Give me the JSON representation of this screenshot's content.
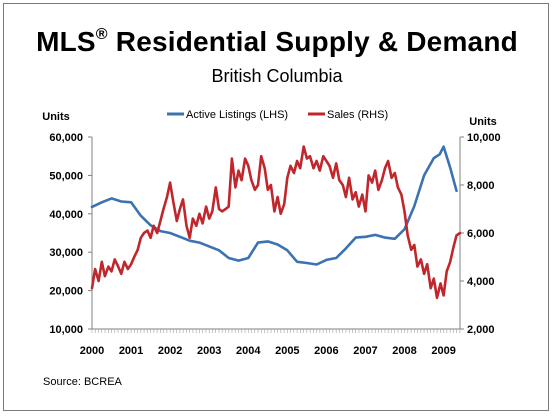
{
  "title": {
    "main": "MLS",
    "reg": "®",
    "rest": " Residential Supply & Demand"
  },
  "subtitle": "British Columbia",
  "source": "Source: BCREA",
  "chart_data": {
    "type": "line",
    "left_axis": {
      "label": "Units",
      "min": 10000,
      "max": 60000,
      "ticks": [
        10000,
        20000,
        30000,
        40000,
        50000,
        60000
      ],
      "tick_labels": [
        "10,000",
        "20,000",
        "30,000",
        "40,000",
        "50,000",
        "60,000"
      ]
    },
    "right_axis": {
      "label": "Units",
      "min": 2000,
      "max": 10000,
      "ticks": [
        2000,
        4000,
        6000,
        8000,
        10000
      ],
      "tick_labels": [
        "2,000",
        "4,000",
        "6,000",
        "8,000",
        "10,000"
      ]
    },
    "x_axis": {
      "min": 2000.0,
      "max": 2009.42,
      "tick_labels": [
        "2000",
        "2001",
        "2002",
        "2003",
        "2004",
        "2005",
        "2006",
        "2007",
        "2008",
        "2009"
      ],
      "tick_positions": [
        2000,
        2001,
        2002,
        2003,
        2004,
        2005,
        2006,
        2007,
        2008,
        2009
      ]
    },
    "legend": {
      "placement": "top-center"
    },
    "series": [
      {
        "name": "Active Listings (LHS)",
        "axis": "left",
        "color": "#3b73b2",
        "x": [
          2000.0,
          2000.25,
          2000.5,
          2000.75,
          2001.0,
          2001.25,
          2001.5,
          2001.75,
          2002.0,
          2002.25,
          2002.5,
          2002.75,
          2003.0,
          2003.25,
          2003.5,
          2003.75,
          2004.0,
          2004.25,
          2004.5,
          2004.75,
          2005.0,
          2005.25,
          2005.5,
          2005.75,
          2006.0,
          2006.25,
          2006.5,
          2006.75,
          2007.0,
          2007.25,
          2007.5,
          2007.75,
          2008.0,
          2008.25,
          2008.5,
          2008.75,
          2008.9,
          2009.0,
          2009.17,
          2009.33
        ],
        "y": [
          41800,
          43000,
          44000,
          43200,
          43000,
          39500,
          37000,
          35500,
          35000,
          34000,
          33000,
          32500,
          31500,
          30500,
          28500,
          27800,
          28500,
          32500,
          32800,
          32000,
          30500,
          27500,
          27200,
          26800,
          28000,
          28500,
          31000,
          33800,
          34000,
          34500,
          33800,
          33500,
          36000,
          42000,
          50000,
          54500,
          55500,
          57500,
          52000,
          46000
        ]
      },
      {
        "name": "Sales (RHS)",
        "axis": "right",
        "color": "#c0272d",
        "x": [
          2000.0,
          2000.08,
          2000.17,
          2000.25,
          2000.33,
          2000.42,
          2000.5,
          2000.58,
          2000.67,
          2000.75,
          2000.83,
          2000.92,
          2001.0,
          2001.08,
          2001.17,
          2001.25,
          2001.33,
          2001.42,
          2001.5,
          2001.58,
          2001.67,
          2001.75,
          2001.83,
          2001.92,
          2002.0,
          2002.08,
          2002.17,
          2002.25,
          2002.33,
          2002.42,
          2002.5,
          2002.58,
          2002.67,
          2002.75,
          2002.83,
          2002.92,
          2003.0,
          2003.08,
          2003.17,
          2003.25,
          2003.33,
          2003.42,
          2003.5,
          2003.58,
          2003.67,
          2003.75,
          2003.83,
          2003.92,
          2004.0,
          2004.08,
          2004.17,
          2004.25,
          2004.33,
          2004.42,
          2004.5,
          2004.58,
          2004.67,
          2004.75,
          2004.83,
          2004.92,
          2005.0,
          2005.08,
          2005.17,
          2005.25,
          2005.33,
          2005.42,
          2005.5,
          2005.58,
          2005.67,
          2005.75,
          2005.83,
          2005.92,
          2006.0,
          2006.08,
          2006.17,
          2006.25,
          2006.33,
          2006.42,
          2006.5,
          2006.58,
          2006.67,
          2006.75,
          2006.83,
          2006.92,
          2007.0,
          2007.08,
          2007.17,
          2007.25,
          2007.33,
          2007.42,
          2007.5,
          2007.58,
          2007.67,
          2007.75,
          2007.83,
          2007.92,
          2008.0,
          2008.08,
          2008.17,
          2008.25,
          2008.33,
          2008.42,
          2008.5,
          2008.58,
          2008.67,
          2008.75,
          2008.83,
          2008.92,
          2009.0,
          2009.08,
          2009.17,
          2009.25,
          2009.33,
          2009.42
        ],
        "y": [
          3700,
          4500,
          4000,
          4800,
          4200,
          4600,
          4400,
          4900,
          4600,
          4300,
          4800,
          4500,
          4700,
          5000,
          5300,
          5800,
          6000,
          6100,
          5800,
          6300,
          6000,
          6500,
          7000,
          7500,
          8100,
          7300,
          6500,
          7000,
          7400,
          6300,
          5800,
          6600,
          6300,
          6800,
          6400,
          7100,
          6600,
          6900,
          7900,
          7000,
          6900,
          7000,
          7100,
          9100,
          7900,
          8600,
          8200,
          9100,
          8800,
          8200,
          7800,
          8000,
          9200,
          8700,
          7800,
          8000,
          6900,
          7500,
          6800,
          7200,
          8300,
          8800,
          8500,
          9000,
          8700,
          9600,
          9100,
          9200,
          8700,
          9000,
          8600,
          9200,
          9000,
          8800,
          8300,
          8900,
          8200,
          8000,
          7500,
          8300,
          7400,
          7700,
          7100,
          7600,
          6900,
          8400,
          8100,
          8600,
          7800,
          8200,
          8700,
          9000,
          8300,
          8500,
          7900,
          7600,
          6900,
          5900,
          5300,
          5500,
          4600,
          4900,
          4300,
          4700,
          3700,
          4100,
          3300,
          3900,
          3400,
          4400,
          4800,
          5400,
          5900,
          6000
        ]
      }
    ]
  }
}
